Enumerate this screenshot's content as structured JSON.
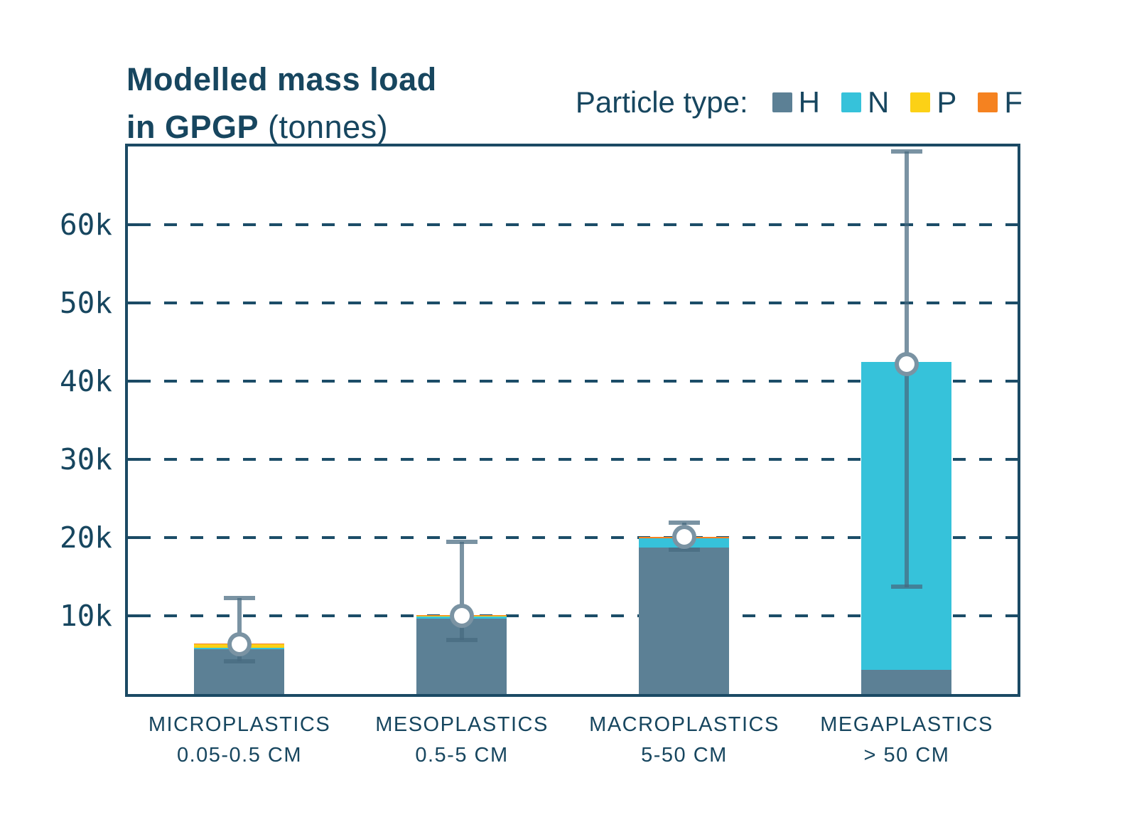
{
  "title": {
    "line1_bold": "Modelled mass load",
    "line2_bold": "in GPGP",
    "line2_regular": "(tonnes)"
  },
  "legend": {
    "title": "Particle type:",
    "entries": [
      {
        "label": "H",
        "color": "#5C8095"
      },
      {
        "label": "N",
        "color": "#36C2DA"
      },
      {
        "label": "P",
        "color": "#FCD116"
      },
      {
        "label": "F",
        "color": "#F58220"
      }
    ]
  },
  "colors": {
    "text": "#17465F",
    "axis": "#1B4A64",
    "gridline": "#1C4D68",
    "error_bar": "rgba(70,105,128,0.72)",
    "background": "#ffffff"
  },
  "chart_data": {
    "type": "bar",
    "stacked": true,
    "title": "Modelled mass load in GPGP (tonnes)",
    "unit": "tonnes",
    "legend_position": "top-right",
    "grid": "dashed-horizontal",
    "ylim": [
      0,
      70000
    ],
    "yticks": [
      {
        "value": 10000,
        "label": "10k"
      },
      {
        "value": 20000,
        "label": "20k"
      },
      {
        "value": 30000,
        "label": "30k"
      },
      {
        "value": 40000,
        "label": "40k"
      },
      {
        "value": 50000,
        "label": "50k"
      },
      {
        "value": 60000,
        "label": "60k"
      }
    ],
    "categories": [
      {
        "label": "MICROPLASTICS",
        "sublabel": "0.05-0.5 CM"
      },
      {
        "label": "MESOPLASTICS",
        "sublabel": "0.5-5 CM"
      },
      {
        "label": "MACROPLASTICS",
        "sublabel": "5-50 CM"
      },
      {
        "label": "MEGAPLASTICS",
        "sublabel": "> 50 CM"
      }
    ],
    "series": [
      {
        "name": "H",
        "color": "#5C8095",
        "values": [
          5700,
          9600,
          18750,
          3100
        ]
      },
      {
        "name": "N",
        "color": "#36C2DA",
        "values": [
          250,
          330,
          1200,
          39400
        ]
      },
      {
        "name": "P",
        "color": "#FCD116",
        "values": [
          430,
          60,
          0,
          0
        ]
      },
      {
        "name": "F",
        "color": "#F58220",
        "values": [
          120,
          60,
          150,
          0
        ]
      }
    ],
    "totals": [
      6500,
      10050,
      20100,
      42500
    ],
    "error_bars": {
      "marker": [
        6400,
        10000,
        20100,
        42200
      ],
      "low": [
        4200,
        6900,
        18500,
        13700
      ],
      "high": [
        12300,
        19450,
        21950,
        69400
      ]
    }
  }
}
